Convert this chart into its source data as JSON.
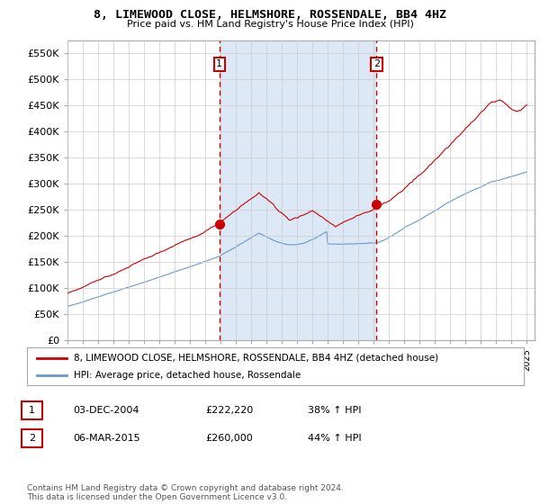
{
  "title": "8, LIMEWOOD CLOSE, HELMSHORE, ROSSENDALE, BB4 4HZ",
  "subtitle": "Price paid vs. HM Land Registry's House Price Index (HPI)",
  "background_color": "#ffffff",
  "plot_bg_color": "#ffffff",
  "shade_color": "#dce8f5",
  "ylim": [
    0,
    575000
  ],
  "yticks": [
    0,
    50000,
    100000,
    150000,
    200000,
    250000,
    300000,
    350000,
    400000,
    450000,
    500000,
    550000
  ],
  "ytick_labels": [
    "£0",
    "£50K",
    "£100K",
    "£150K",
    "£200K",
    "£250K",
    "£300K",
    "£350K",
    "£400K",
    "£450K",
    "£500K",
    "£550K"
  ],
  "x_start_year": 1995,
  "x_end_year": 2025,
  "xtick_years": [
    1995,
    1996,
    1997,
    1998,
    1999,
    2000,
    2001,
    2002,
    2003,
    2004,
    2005,
    2006,
    2007,
    2008,
    2009,
    2010,
    2011,
    2012,
    2013,
    2014,
    2015,
    2016,
    2017,
    2018,
    2019,
    2020,
    2021,
    2022,
    2023,
    2024,
    2025
  ],
  "vline1_x": 2004.92,
  "vline2_x": 2015.18,
  "marker1_x": 2004.92,
  "marker1_y": 222220,
  "marker2_x": 2015.18,
  "marker2_y": 260000,
  "sale1_label": "1",
  "sale2_label": "2",
  "legend_line1": "8, LIMEWOOD CLOSE, HELMSHORE, ROSSENDALE, BB4 4HZ (detached house)",
  "legend_line2": "HPI: Average price, detached house, Rossendale",
  "table_row1": [
    "1",
    "03-DEC-2004",
    "£222,220",
    "38% ↑ HPI"
  ],
  "table_row2": [
    "2",
    "06-MAR-2015",
    "£260,000",
    "44% ↑ HPI"
  ],
  "footer": "Contains HM Land Registry data © Crown copyright and database right 2024.\nThis data is licensed under the Open Government Licence v3.0.",
  "line1_color": "#cc0000",
  "line2_color": "#6699cc",
  "vline_color": "#cc0000",
  "grid_color": "#cccccc"
}
